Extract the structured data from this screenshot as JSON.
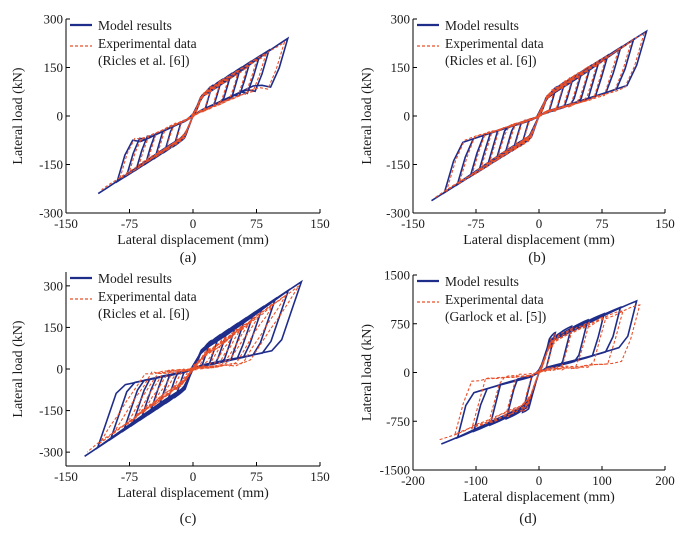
{
  "colors": {
    "model": "#1f2d8a",
    "experiment": "#e8502a",
    "axis": "#000000"
  },
  "chart_data": [
    {
      "type": "line",
      "panel_label": "(a)",
      "xlabel": "Lateral displacement (mm)",
      "ylabel": "Lateral load (kN)",
      "xlim": [
        -150,
        150
      ],
      "ylim": [
        -300,
        300
      ],
      "xticks": [
        -150,
        -75,
        0,
        75,
        150
      ],
      "yticks": [
        -300,
        -150,
        0,
        150,
        300
      ],
      "grid": false,
      "legend_position": "top-left",
      "legend": [
        "Model results",
        "Experimental data",
        "(Ricles et al. [6])"
      ],
      "series": [
        {
          "name": "Model results",
          "style": "solid",
          "amplitudes": [
            20,
            30,
            40,
            50,
            60,
            70,
            80,
            100
          ],
          "peak": [
            112,
            240
          ],
          "k0": 7.5,
          "yield": 70,
          "k2": 1.6,
          "close_k": 1.3,
          "jitter": 0
        },
        {
          "name": "Experimental data",
          "style": "dashed",
          "amplitudes": [
            20,
            30,
            40,
            50,
            60,
            70,
            80,
            100
          ],
          "peak": [
            108,
            228
          ],
          "k0": 7.2,
          "yield": 72,
          "k2": 1.55,
          "close_k": 1.15,
          "jitter": 6
        }
      ]
    },
    {
      "type": "line",
      "panel_label": "(b)",
      "xlabel": "Lateral displacement (mm)",
      "ylabel": "Lateral load (kN)",
      "xlim": [
        -150,
        150
      ],
      "ylim": [
        -300,
        300
      ],
      "xticks": [
        -150,
        -75,
        0,
        75,
        150
      ],
      "yticks": [
        -300,
        -150,
        0,
        150,
        300
      ],
      "grid": false,
      "legend_position": "top-left",
      "legend": [
        "Model results",
        "Experimental data",
        "(Ricles et al. [6])"
      ],
      "series": [
        {
          "name": "Model results",
          "style": "solid",
          "amplitudes": [
            20,
            30,
            40,
            50,
            60,
            70,
            80,
            95,
            110,
            125
          ],
          "peak": [
            128,
            262
          ],
          "k0": 7.5,
          "yield": 65,
          "k2": 1.5,
          "close_k": 0.9,
          "jitter": 0
        },
        {
          "name": "Experimental data",
          "style": "dashed",
          "amplitudes": [
            20,
            30,
            40,
            50,
            60,
            70,
            80,
            95,
            110,
            125
          ],
          "peak": [
            125,
            255
          ],
          "k0": 7.2,
          "yield": 68,
          "k2": 1.45,
          "close_k": 0.85,
          "jitter": 6
        }
      ]
    },
    {
      "type": "line",
      "panel_label": "(c)",
      "xlabel": "Lateral displacement (mm)",
      "ylabel": "Lateral load (kN)",
      "xlim": [
        -150,
        150
      ],
      "ylim": [
        -350,
        350
      ],
      "xticks": [
        -150,
        -75,
        0,
        75,
        150
      ],
      "yticks": [
        -300,
        -150,
        0,
        150,
        300
      ],
      "grid": false,
      "legend_position": "top-left",
      "legend": [
        "Model results",
        "Experimental data",
        "(Ricles et al. [6])"
      ],
      "series": [
        {
          "name": "Model results",
          "style": "solid",
          "amplitudes": [
            20,
            30,
            40,
            50,
            60,
            70,
            80,
            95,
            110,
            125
          ],
          "peak": [
            128,
            315
          ],
          "k0": 7.5,
          "yield": 70,
          "k2": 1.8,
          "close_k": 0.7,
          "jitter": 0
        },
        {
          "name": "Experimental data",
          "style": "dashed",
          "amplitudes": [
            20,
            30,
            40,
            50,
            60,
            70,
            80,
            95,
            110,
            125
          ],
          "peak": [
            125,
            300
          ],
          "k0": 4.0,
          "yield": 50,
          "k2": 1.9,
          "close_k": 0.25,
          "jitter": 10
        }
      ]
    },
    {
      "type": "line",
      "panel_label": "(d)",
      "xlabel": "Lateral displacement (mm)",
      "ylabel": "Lateral load (kN)",
      "xlim": [
        -200,
        200
      ],
      "ylim": [
        -1500,
        1500
      ],
      "xticks": [
        -200,
        -100,
        0,
        100,
        200
      ],
      "yticks": [
        -1500,
        -750,
        0,
        750,
        1500
      ],
      "grid": false,
      "legend_position": "top-left",
      "legend": [
        "Model results",
        "Experimental data",
        "(Garlock et al. [5])"
      ],
      "series": [
        {
          "name": "Model results",
          "style": "solid",
          "amplitudes": [
            25,
            50,
            75,
            100,
            125,
            150
          ],
          "peak": [
            155,
            1100
          ],
          "k0": 32,
          "yield": 520,
          "k2": 3.4,
          "close_k": 3.0,
          "jitter": 0
        },
        {
          "name": "Experimental data",
          "style": "dashed",
          "amplitudes": [
            25,
            50,
            75,
            100,
            125,
            150
          ],
          "peak": [
            160,
            1040
          ],
          "k0": 30,
          "yield": 560,
          "k2": 3.3,
          "close_k": 1.2,
          "jitter": 35
        }
      ]
    }
  ]
}
